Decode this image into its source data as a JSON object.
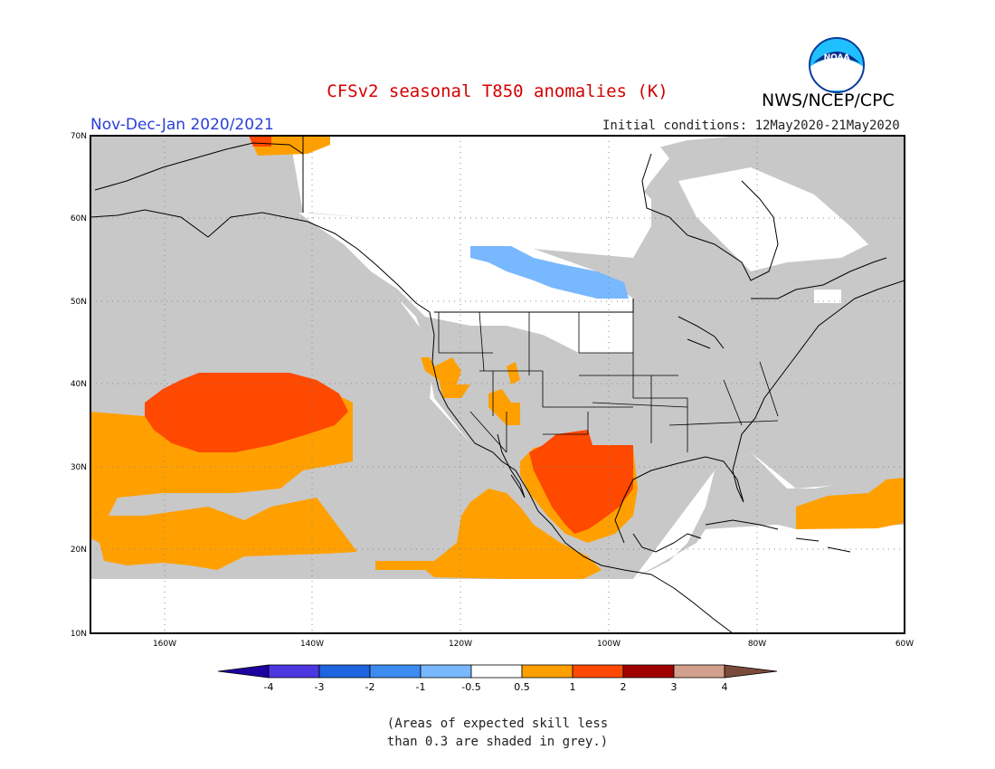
{
  "header": {
    "title": "CFSv2 seasonal T850 anomalies (K)",
    "agency": "NWS/NCEP/CPC",
    "logo_text": "NOAA",
    "period": "Nov-Dec-Jan 2020/2021",
    "initial_conditions": "Initial conditions: 12May2020-21May2020"
  },
  "map": {
    "lat_labels": [
      "70N",
      "60N",
      "50N",
      "40N",
      "30N",
      "20N",
      "10N"
    ],
    "lon_labels": [
      "160W",
      "140W",
      "120W",
      "100W",
      "80W",
      "60W"
    ],
    "colors": {
      "grey": "#c8c8c8",
      "orange": "#ffa000",
      "red": "#ff4800",
      "light_blue": "#78b8ff",
      "coast": "#000000"
    }
  },
  "legend": {
    "labels": [
      "-4",
      "-3",
      "-2",
      "-1",
      "-0.5",
      "0.5",
      "1",
      "2",
      "3",
      "4"
    ],
    "colors": [
      "#1f00a0",
      "#4b36e0",
      "#1e64e0",
      "#3c8cf0",
      "#78b8ff",
      "#ffffff",
      "#ffa000",
      "#ff4800",
      "#a00000",
      "#d2a08c",
      "#7a4a3a"
    ]
  },
  "footnote": {
    "line1": "(Areas of expected skill less",
    "line2": "than 0.3 are shaded in grey.)"
  }
}
